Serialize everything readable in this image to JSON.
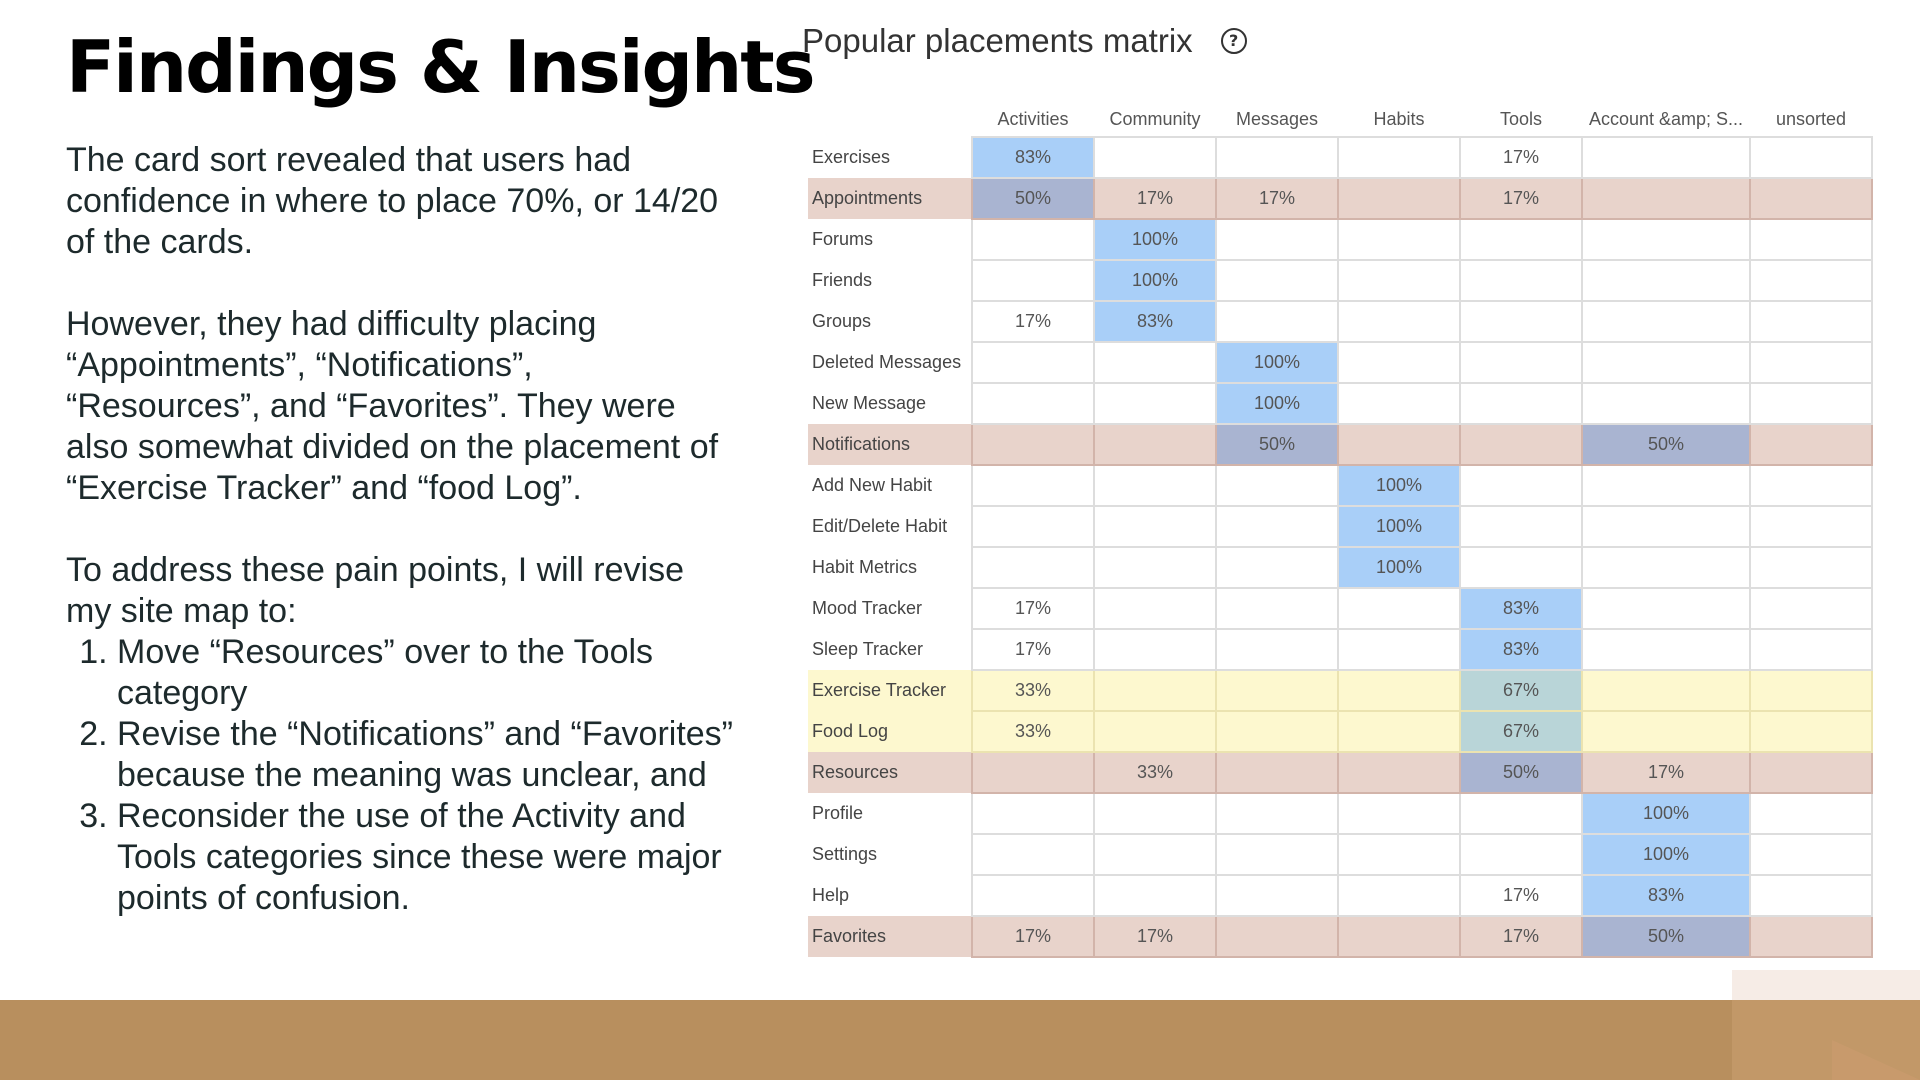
{
  "slide": {
    "title": "Findings & Insights",
    "paragraph1": "The card sort revealed that users had confidence in where to place 70%, or 14/20 of the cards.",
    "paragraph2": "However, they had difficulty placing “Appointments”, “Notifications”, “Resources”, and “Favorites”. They were also somewhat divided on the placement of “Exercise Tracker” and “food Log”.",
    "paragraph3": "To address these pain points, I will revise my site map to:",
    "list": [
      "Move “Resources” over to the Tools category",
      "Revise the “Notifications” and “Favorites” because the meaning was unclear, and",
      "Reconsider the use of the Activity and Tools categories since these were major points of confusion."
    ]
  },
  "matrix": {
    "title": "Popular placements matrix",
    "help_icon": "question-circle-icon"
  },
  "colors": {
    "strong_cell": "#a9cff8",
    "pain_point_row": "#e8d3cb",
    "divided_row": "#fdf8cf",
    "footer_band": "#b88f5e"
  },
  "chart_data": {
    "type": "heatmap",
    "title": "Popular placements matrix",
    "columns": [
      "Activities",
      "Community",
      "Messages",
      "Habits",
      "Tools",
      "Account &amp; S...",
      "unsorted"
    ],
    "rows": [
      {
        "label": "Exercises",
        "highlight": "none",
        "values": [
          "83%",
          "",
          "",
          "",
          "17%",
          "",
          ""
        ]
      },
      {
        "label": "Appointments",
        "highlight": "pain",
        "values": [
          "50%",
          "17%",
          "17%",
          "",
          "17%",
          "",
          ""
        ]
      },
      {
        "label": "Forums",
        "highlight": "none",
        "values": [
          "",
          "100%",
          "",
          "",
          "",
          "",
          ""
        ]
      },
      {
        "label": "Friends",
        "highlight": "none",
        "values": [
          "",
          "100%",
          "",
          "",
          "",
          "",
          ""
        ]
      },
      {
        "label": "Groups",
        "highlight": "none",
        "values": [
          "17%",
          "83%",
          "",
          "",
          "",
          "",
          ""
        ]
      },
      {
        "label": "Deleted Messages",
        "highlight": "none",
        "values": [
          "",
          "",
          "100%",
          "",
          "",
          "",
          ""
        ]
      },
      {
        "label": "New Message",
        "highlight": "none",
        "values": [
          "",
          "",
          "100%",
          "",
          "",
          "",
          ""
        ]
      },
      {
        "label": "Notifications",
        "highlight": "pain",
        "values": [
          "",
          "",
          "50%",
          "",
          "",
          "50%",
          ""
        ]
      },
      {
        "label": "Add New Habit",
        "highlight": "none",
        "values": [
          "",
          "",
          "",
          "100%",
          "",
          "",
          ""
        ]
      },
      {
        "label": "Edit/Delete Habit",
        "highlight": "none",
        "values": [
          "",
          "",
          "",
          "100%",
          "",
          "",
          ""
        ]
      },
      {
        "label": "Habit Metrics",
        "highlight": "none",
        "values": [
          "",
          "",
          "",
          "100%",
          "",
          "",
          ""
        ]
      },
      {
        "label": "Mood Tracker",
        "highlight": "none",
        "values": [
          "17%",
          "",
          "",
          "",
          "83%",
          "",
          ""
        ]
      },
      {
        "label": "Sleep Tracker",
        "highlight": "none",
        "values": [
          "17%",
          "",
          "",
          "",
          "83%",
          "",
          ""
        ]
      },
      {
        "label": "Exercise Tracker",
        "highlight": "divided",
        "values": [
          "33%",
          "",
          "",
          "",
          "67%",
          "",
          ""
        ]
      },
      {
        "label": "Food Log",
        "highlight": "divided",
        "values": [
          "33%",
          "",
          "",
          "",
          "67%",
          "",
          ""
        ]
      },
      {
        "label": "Resources",
        "highlight": "pain",
        "values": [
          "",
          "33%",
          "",
          "",
          "50%",
          "17%",
          ""
        ]
      },
      {
        "label": "Profile",
        "highlight": "none",
        "values": [
          "",
          "",
          "",
          "",
          "",
          "100%",
          ""
        ]
      },
      {
        "label": "Settings",
        "highlight": "none",
        "values": [
          "",
          "",
          "",
          "",
          "",
          "100%",
          ""
        ]
      },
      {
        "label": "Help",
        "highlight": "none",
        "values": [
          "",
          "",
          "",
          "",
          "17%",
          "83%",
          ""
        ]
      },
      {
        "label": "Favorites",
        "highlight": "pain",
        "values": [
          "17%",
          "17%",
          "",
          "",
          "17%",
          "50%",
          ""
        ]
      }
    ]
  }
}
